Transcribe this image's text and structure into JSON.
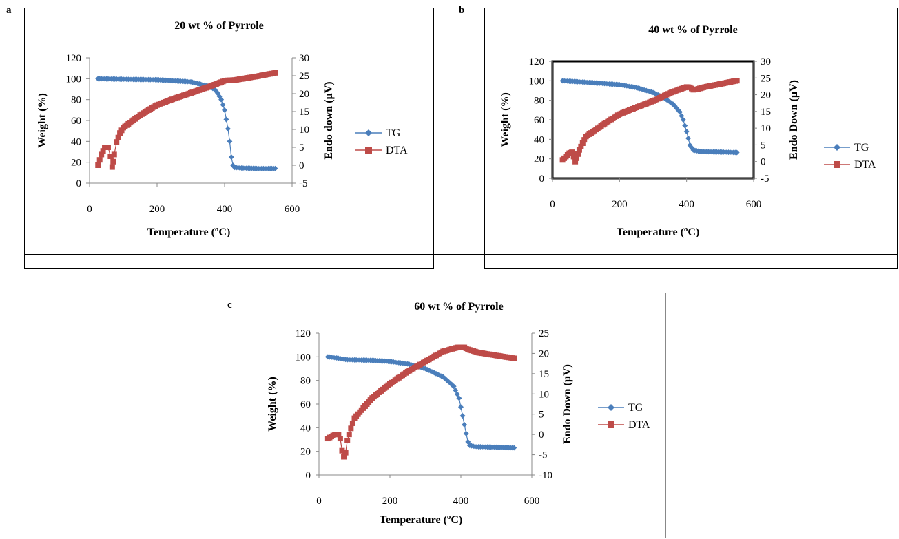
{
  "panels": [
    {
      "letter": "a"
    },
    {
      "letter": "b"
    },
    {
      "letter": "c"
    }
  ],
  "colors": {
    "tg": "#4a7ebb",
    "dta": "#be4b48"
  },
  "chart_data": [
    {
      "type": "scatter",
      "title": "20 wt % of Pyrrole",
      "xlabel": "Temperature (oC)",
      "ylabel": "Weight  (%)",
      "y2label": "Endo down (µV)",
      "xlim": [
        0,
        600
      ],
      "xticks": [
        0,
        200,
        400,
        600
      ],
      "ylim": [
        0,
        120
      ],
      "yticks": [
        0,
        20,
        40,
        60,
        80,
        100,
        120
      ],
      "y2lim": [
        -5,
        30
      ],
      "y2ticks": [
        -5,
        0,
        5,
        10,
        15,
        20,
        25,
        30
      ],
      "legend": "right",
      "series": [
        {
          "name": "TG",
          "axis": "left",
          "marker": "diamond",
          "x": [
            25,
            100,
            200,
            300,
            350,
            370,
            380,
            390,
            400,
            410,
            415,
            420,
            425,
            430,
            450,
            500,
            550
          ],
          "y": [
            100,
            99.5,
            99,
            97,
            93,
            90,
            86,
            80,
            70,
            52,
            40,
            25,
            17,
            15,
            14.5,
            14,
            14
          ]
        },
        {
          "name": "DTA",
          "axis": "right",
          "marker": "square",
          "x": [
            25,
            35,
            45,
            55,
            62,
            67,
            70,
            73,
            80,
            90,
            100,
            150,
            200,
            250,
            300,
            350,
            390,
            400,
            410,
            430,
            450,
            500,
            550
          ],
          "y": [
            0,
            3,
            5,
            5,
            2.5,
            -0.5,
            1,
            3,
            6.5,
            9,
            10.5,
            14,
            16.8,
            18.6,
            20.2,
            21.8,
            23.2,
            23.6,
            23.7,
            23.8,
            24.1,
            24.9,
            25.8
          ]
        }
      ]
    },
    {
      "type": "scatter",
      "title": "40 wt % of Pyrrole",
      "xlabel": "Temperature (oC)",
      "ylabel": "Weight  (%)",
      "y2label": "Endo Down (µV)",
      "xlim": [
        0,
        600
      ],
      "xticks": [
        0,
        200,
        400,
        600
      ],
      "ylim": [
        0,
        120
      ],
      "yticks": [
        0,
        20,
        40,
        60,
        80,
        100,
        120
      ],
      "y2lim": [
        -5,
        30
      ],
      "y2ticks": [
        -5,
        0,
        5,
        10,
        15,
        20,
        25,
        30
      ],
      "legend": "right",
      "series": [
        {
          "name": "TG",
          "axis": "left",
          "marker": "diamond",
          "x": [
            30,
            100,
            200,
            250,
            300,
            330,
            360,
            380,
            390,
            400,
            410,
            420,
            440,
            500,
            550
          ],
          "y": [
            100,
            98.5,
            96,
            93,
            88,
            83,
            76,
            68,
            60,
            48,
            34,
            29,
            27.5,
            27,
            26.5
          ]
        },
        {
          "name": "DTA",
          "axis": "right",
          "marker": "square",
          "x": [
            30,
            40,
            50,
            58,
            63,
            68,
            72,
            80,
            90,
            100,
            150,
            200,
            250,
            300,
            350,
            390,
            400,
            410,
            420,
            430,
            450,
            500,
            550
          ],
          "y": [
            0.5,
            1.5,
            2.5,
            2.8,
            1.5,
            0,
            1,
            3.5,
            5.5,
            7.5,
            11,
            14.2,
            16.2,
            18.1,
            20.5,
            22,
            22.3,
            22.2,
            21.5,
            21.6,
            22.2,
            23.2,
            24.2
          ]
        }
      ]
    },
    {
      "type": "scatter",
      "title": "60 wt % of Pyrrole",
      "xlabel": "Temperature (oC)",
      "ylabel": "Weight  (%)",
      "y2label": "Endo Down (µV)",
      "xlim": [
        0,
        600
      ],
      "xticks": [
        0,
        200,
        400,
        600
      ],
      "ylim": [
        0,
        120
      ],
      "yticks": [
        0,
        20,
        40,
        60,
        80,
        100,
        120
      ],
      "y2lim": [
        -10,
        25
      ],
      "y2ticks": [
        -10,
        -5,
        0,
        5,
        10,
        15,
        20,
        25
      ],
      "legend": "right",
      "series": [
        {
          "name": "TG",
          "axis": "left",
          "marker": "diamond",
          "x": [
            25,
            50,
            80,
            150,
            200,
            250,
            300,
            350,
            380,
            395,
            405,
            415,
            420,
            425,
            440,
            500,
            550
          ],
          "y": [
            100,
            99,
            97.5,
            97,
            96,
            94,
            90,
            83,
            75,
            65,
            50,
            35,
            28,
            25,
            24,
            23.5,
            23
          ]
        },
        {
          "name": "DTA",
          "axis": "right",
          "marker": "square",
          "x": [
            25,
            35,
            45,
            55,
            60,
            65,
            70,
            75,
            80,
            85,
            90,
            100,
            150,
            200,
            250,
            300,
            350,
            390,
            400,
            410,
            420,
            450,
            500,
            550
          ],
          "y": [
            -1,
            -0.5,
            0,
            0,
            -1,
            -4,
            -5.5,
            -4.5,
            -1.5,
            0,
            1.5,
            4,
            9,
            12.5,
            15.5,
            18,
            20.5,
            21.5,
            21.5,
            21.5,
            21,
            20.2,
            19.5,
            18.8
          ]
        }
      ]
    }
  ]
}
